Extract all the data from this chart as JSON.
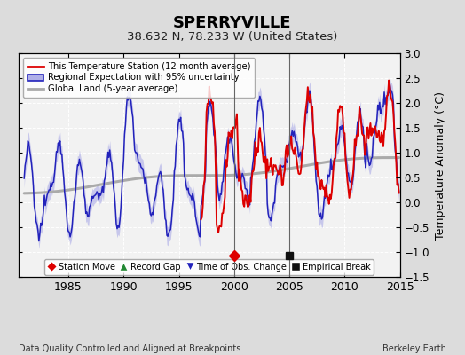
{
  "title": "SPERRYVILLE",
  "subtitle": "38.632 N, 78.233 W (United States)",
  "ylabel": "Temperature Anomaly (°C)",
  "xlabel_left": "Data Quality Controlled and Aligned at Breakpoints",
  "xlabel_right": "Berkeley Earth",
  "ylim": [
    -1.5,
    3.0
  ],
  "xlim": [
    1980.5,
    2015.0
  ],
  "xticks": [
    1985,
    1990,
    1995,
    2000,
    2005,
    2010,
    2015
  ],
  "yticks_right": [
    -1.5,
    -1.0,
    -0.5,
    0.0,
    0.5,
    1.0,
    1.5,
    2.0,
    2.5,
    3.0
  ],
  "background_color": "#dcdcdc",
  "plot_bg_color": "#f2f2f2",
  "grid_color": "#ffffff",
  "station_move_year": 2000.0,
  "empirical_break_year": 2005.0,
  "vertical_line_1": 2000.0,
  "vertical_line_2": 2005.0,
  "red_line_color": "#dd0000",
  "blue_line_color": "#2222bb",
  "blue_fill_color": "#b0b0e8",
  "gray_line_color": "#aaaaaa",
  "marker_y": -1.08
}
